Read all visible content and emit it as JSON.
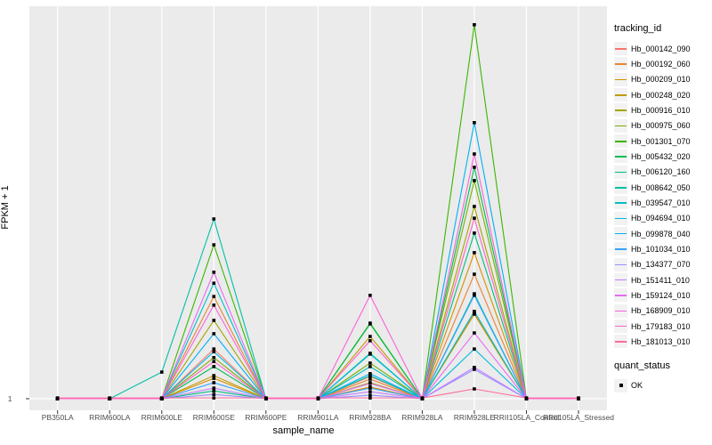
{
  "x_axis": {
    "title": "sample_name",
    "categories": [
      "PB350LA",
      "RRIM600LA",
      "RRIM600LE",
      "RRIM600SE",
      "RRIM600PE",
      "RRIM901LA",
      "RRIM928BA",
      "RRIM928LA",
      "RRIM928LE",
      "RRII105LA_Control",
      "RRII105LA_Stressed"
    ]
  },
  "y_axis": {
    "title": "FPKM + 1",
    "tick_labels": [
      "1"
    ]
  },
  "chart_data": {
    "type": "line",
    "title": "",
    "xlabel": "sample_name",
    "ylabel": "FPKM + 1",
    "y_tick_labels": [
      "1"
    ],
    "value_unit": "fraction of plot height above the y=1 baseline (only the tick '1' is labeled on the y axis)",
    "background_color": "#EBEBEB",
    "gridline_color": "#FFFFFF",
    "marker": {
      "shape": "square",
      "color": "#000000",
      "meaning": "quant_status OK"
    },
    "legend_position": "right",
    "categories": [
      "PB350LA",
      "RRIM600LA",
      "RRIM600LE",
      "RRIM600SE",
      "RRIM600PE",
      "RRIM901LA",
      "RRIM928BA",
      "RRIM928LA",
      "RRIM928LE",
      "RRII105LA_Control",
      "RRII105LA_Stressed"
    ],
    "series": [
      {
        "name": "Hb_000142_090",
        "color": "#F8766D",
        "values": [
          0,
          0,
          0,
          0.127,
          0,
          0,
          0.057,
          0,
          0.218,
          0,
          0
        ]
      },
      {
        "name": "Hb_000192_060",
        "color": "#EA8331",
        "values": [
          0,
          0,
          0,
          0.261,
          0,
          0,
          0.05,
          0,
          0.318,
          0,
          0
        ]
      },
      {
        "name": "Hb_000209_010",
        "color": "#D89000",
        "values": [
          0,
          0,
          0,
          0.052,
          0,
          0,
          0.03,
          0,
          0.373,
          0,
          0
        ]
      },
      {
        "name": "Hb_000248_020",
        "color": "#C09B00",
        "values": [
          0,
          0,
          0,
          0.059,
          0,
          0,
          0.159,
          0,
          0.216,
          0,
          0
        ]
      },
      {
        "name": "Hb_000916_010",
        "color": "#A3A500",
        "values": [
          0,
          0,
          0,
          0.2,
          0,
          0,
          0.041,
          0,
          0.491,
          0,
          0
        ]
      },
      {
        "name": "Hb_000975_060",
        "color": "#7CAE00",
        "values": [
          0,
          0,
          0,
          0.105,
          0,
          0,
          0.091,
          0,
          0.557,
          0,
          0
        ]
      },
      {
        "name": "Hb_001301_070",
        "color": "#39B600",
        "values": [
          0,
          0,
          0,
          0.393,
          0,
          0,
          0.193,
          0,
          0.955,
          0,
          0
        ]
      },
      {
        "name": "Hb_005432_020",
        "color": "#00BB4E",
        "values": [
          0,
          0,
          0,
          0.082,
          0,
          0,
          0.191,
          0,
          0.591,
          0,
          0
        ]
      },
      {
        "name": "Hb_006120_160",
        "color": "#00BF7D",
        "values": [
          0,
          0,
          0,
          0.02,
          0,
          0,
          0.116,
          0,
          0.423,
          0,
          0
        ]
      },
      {
        "name": "Hb_008642_050",
        "color": "#00C1A3",
        "values": [
          0,
          0,
          0.068,
          0.459,
          0,
          0,
          0.059,
          0,
          0.268,
          0,
          0
        ]
      },
      {
        "name": "Hb_039547_010",
        "color": "#00BFC4",
        "values": [
          0,
          0,
          0,
          0.295,
          0,
          0,
          0.082,
          0,
          0.223,
          0,
          0
        ]
      },
      {
        "name": "Hb_094694_010",
        "color": "#00BAE0",
        "values": [
          0,
          0,
          0,
          0.12,
          0,
          0,
          0.114,
          0,
          0.127,
          0,
          0
        ]
      },
      {
        "name": "Hb_099878_040",
        "color": "#00B0F6",
        "values": [
          0,
          0,
          0,
          0.166,
          0,
          0,
          0.064,
          0,
          0.705,
          0,
          0
        ]
      },
      {
        "name": "Hb_101034_010",
        "color": "#35A2FF",
        "values": [
          0,
          0,
          0,
          0.041,
          0,
          0,
          0.027,
          0,
          0.264,
          0,
          0
        ]
      },
      {
        "name": "Hb_134377_070",
        "color": "#9590FF",
        "values": [
          0,
          0,
          0,
          0.011,
          0,
          0,
          0.009,
          0,
          0.075,
          0,
          0
        ]
      },
      {
        "name": "Hb_151411_010",
        "color": "#C77CFF",
        "values": [
          0,
          0,
          0,
          0.027,
          0,
          0,
          0.018,
          0,
          0.08,
          0,
          0
        ]
      },
      {
        "name": "Hb_159124_010",
        "color": "#E76BF3",
        "values": [
          0,
          0,
          0,
          0.323,
          0,
          0,
          0.039,
          0,
          0.168,
          0,
          0
        ]
      },
      {
        "name": "Hb_168909_010",
        "color": "#FA62DB",
        "values": [
          0,
          0,
          0,
          0.239,
          0,
          0,
          0.264,
          0,
          0.625,
          0,
          0
        ]
      },
      {
        "name": "Hb_179183_010",
        "color": "#FF61CC",
        "values": [
          0,
          0,
          0,
          0.095,
          0,
          0,
          0.148,
          0,
          0.461,
          0,
          0
        ]
      },
      {
        "name": "Hb_181013_010",
        "color": "#FF6A98",
        "values": [
          0.002,
          0.002,
          0.002,
          0.002,
          0.002,
          0.002,
          0.002,
          0.002,
          0.025,
          0.002,
          0.002
        ]
      }
    ]
  },
  "legend": {
    "title": "tracking_id",
    "quant_title": "quant_status",
    "quant_items": [
      {
        "label": "OK"
      }
    ]
  }
}
